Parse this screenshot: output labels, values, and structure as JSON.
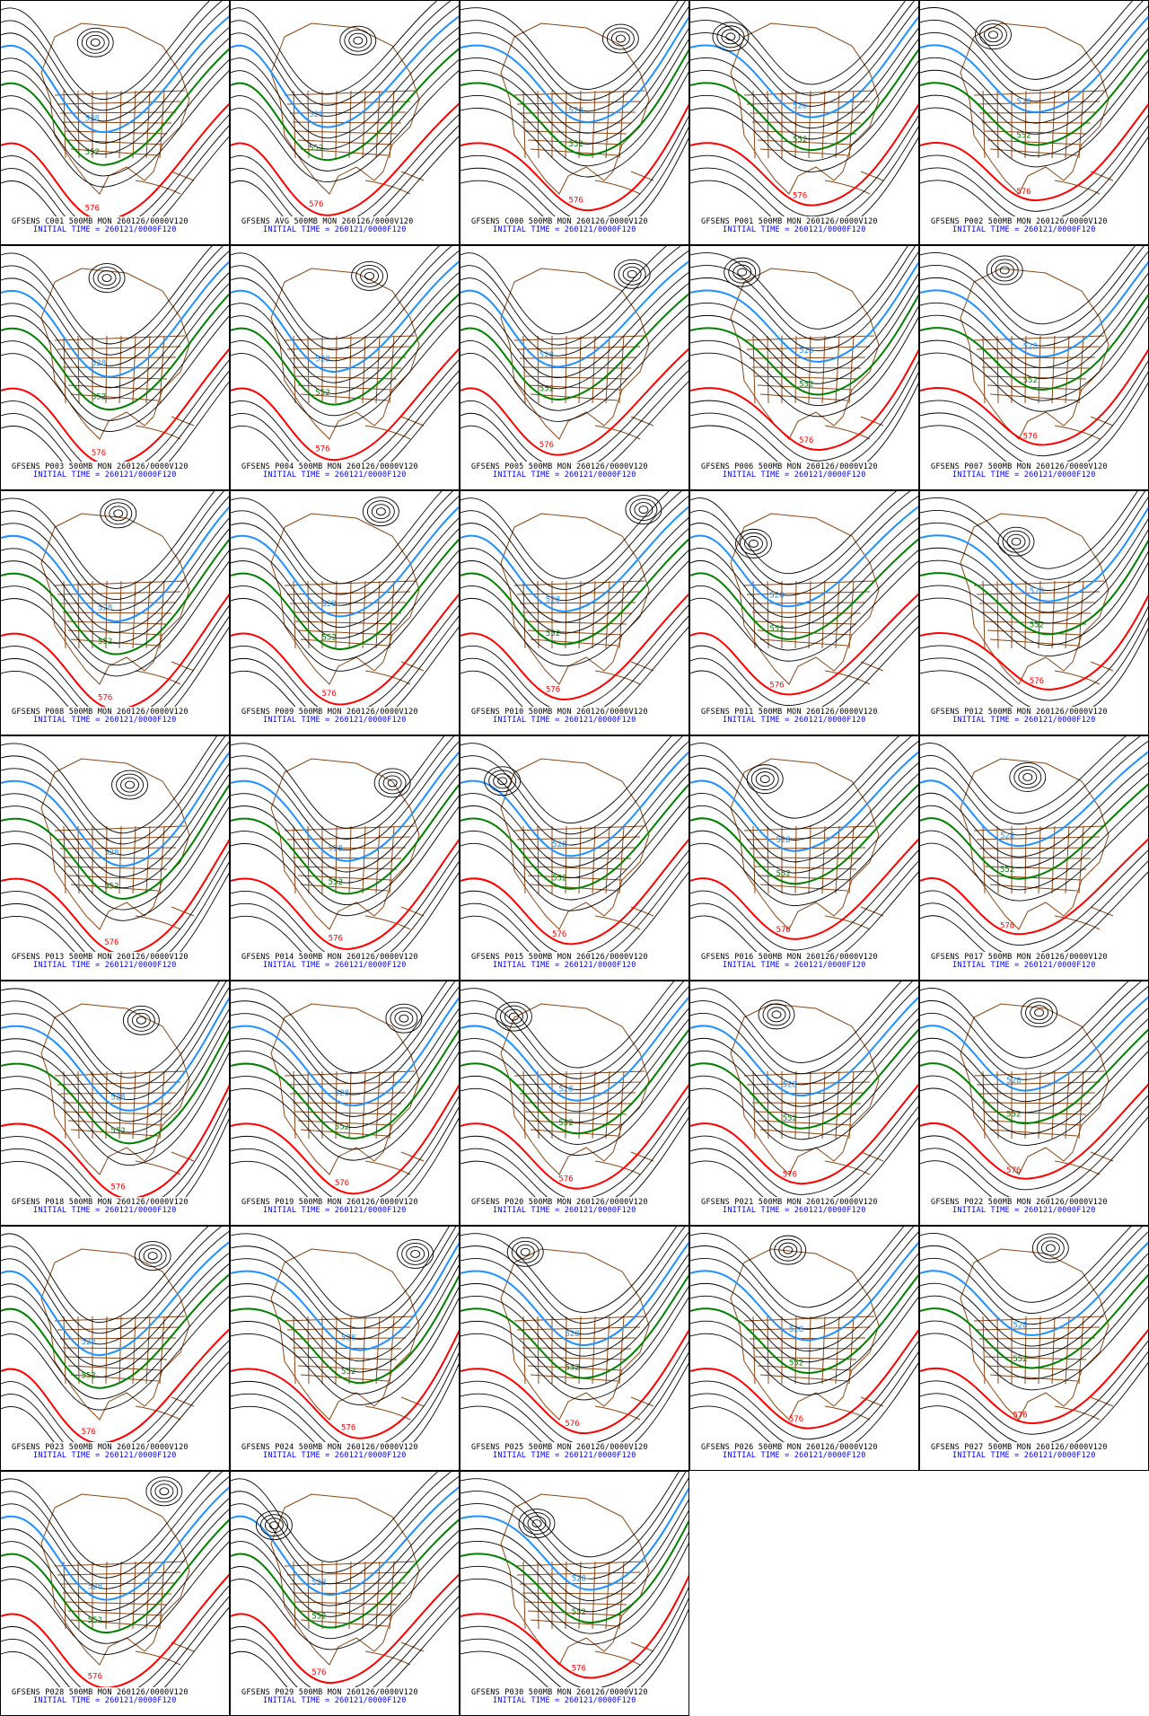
{
  "colors": {
    "contour": "#000000",
    "c528": "#1e90ff",
    "c552": "#008000",
    "c576": "#ff0000",
    "map": "#8b4513",
    "initial": "#0000ff"
  },
  "contour_labels": {
    "c528": "528",
    "c552": "552",
    "c576": "576"
  },
  "initial_time": "INITIAL TIME = 260121/0000F120",
  "panels": [
    {
      "title": "GFSENS C001 500MB MON 260126/0000V120"
    },
    {
      "title": "GFSENS AVG 500MB MON 260126/0000V120"
    },
    {
      "title": "GFSENS C000 500MB MON 260126/0000V120"
    },
    {
      "title": "GFSENS P001 500MB MON 260126/0000V120"
    },
    {
      "title": "GFSENS P002 500MB MON 260126/0000V120"
    },
    {
      "title": "GFSENS P003 500MB MON 260126/0000V120"
    },
    {
      "title": "GFSENS P004 500MB MON 260126/0000V120"
    },
    {
      "title": "GFSENS P005 500MB MON 260126/0000V120"
    },
    {
      "title": "GFSENS P006 500MB MON 260126/0000V120"
    },
    {
      "title": "GFSENS P007 500MB MON 260126/0000V120"
    },
    {
      "title": "GFSENS P008 500MB MON 260126/0000V120"
    },
    {
      "title": "GFSENS P009 500MB MON 260126/0000V120"
    },
    {
      "title": "GFSENS P010 500MB MON 260126/0000V120"
    },
    {
      "title": "GFSENS P011 500MB MON 260126/0000V120"
    },
    {
      "title": "GFSENS P012 500MB MON 260126/0000V120"
    },
    {
      "title": "GFSENS P013 500MB MON 260126/0000V120"
    },
    {
      "title": "GFSENS P014 500MB MON 260126/0000V120"
    },
    {
      "title": "GFSENS P015 500MB MON 260126/0000V120"
    },
    {
      "title": "GFSENS P016 500MB MON 260126/0000V120"
    },
    {
      "title": "GFSENS P017 500MB MON 260126/0000V120"
    },
    {
      "title": "GFSENS P018 500MB MON 260126/0000V120"
    },
    {
      "title": "GFSENS P019 500MB MON 260126/0000V120"
    },
    {
      "title": "GFSENS P020 500MB MON 260126/0000V120"
    },
    {
      "title": "GFSENS P021 500MB MON 260126/0000V120"
    },
    {
      "title": "GFSENS P022 500MB MON 260126/0000V120"
    },
    {
      "title": "GFSENS P023 500MB MON 260126/0000V120"
    },
    {
      "title": "GFSENS P024 500MB MON 260126/0000V120"
    },
    {
      "title": "GFSENS P025 500MB MON 260126/0000V120"
    },
    {
      "title": "GFSENS P026 500MB MON 260126/0000V120"
    },
    {
      "title": "GFSENS P027 500MB MON 260126/0000V120"
    },
    {
      "title": "GFSENS P028 500MB MON 260126/0000V120"
    },
    {
      "title": "GFSENS P029 500MB MON 260126/0000V120"
    },
    {
      "title": "GFSENS P030 500MB MON 260126/0000V120"
    }
  ]
}
